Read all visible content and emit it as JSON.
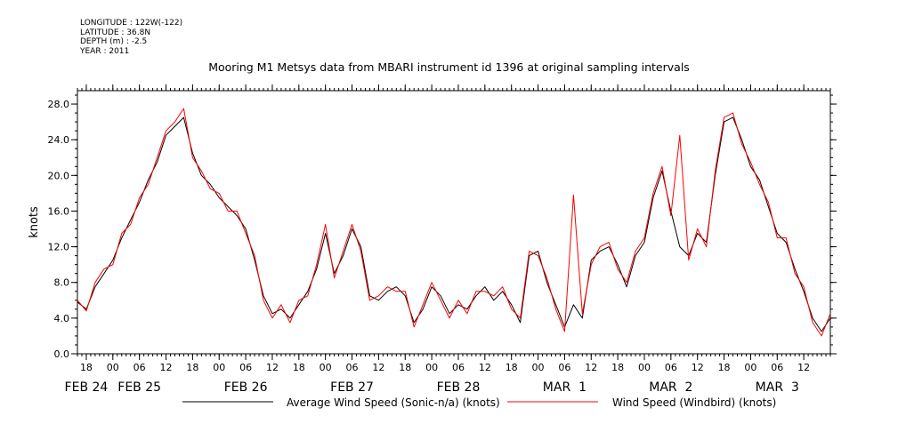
{
  "header": {
    "longitude": "LONGITUDE : 122W(-122)",
    "latitude": "LATITUDE : 36.8N",
    "depth": "DEPTH (m) : -2.5",
    "year": "YEAR : 2011"
  },
  "chart_data": {
    "type": "line",
    "title": "Mooring M1 Metsys data from MBARI instrument id 1396 at original sampling intervals",
    "ylabel": "knots",
    "xlabel": "",
    "ylim": [
      0,
      29.5
    ],
    "xlim": [
      "2011-02-24T16:00",
      "2011-03-03T18:00"
    ],
    "yticks": [
      "0.0",
      "4.0",
      "8.0",
      "12.0",
      "16.0",
      "20.0",
      "24.0",
      "28.0"
    ],
    "ytick_values": [
      0,
      4,
      8,
      12,
      16,
      20,
      24,
      28
    ],
    "hour_ticks": [
      {
        "t": "2011-02-24T18:00",
        "label": "18"
      },
      {
        "t": "2011-02-25T00:00",
        "label": "00"
      },
      {
        "t": "2011-02-25T06:00",
        "label": "06"
      },
      {
        "t": "2011-02-25T12:00",
        "label": "12"
      },
      {
        "t": "2011-02-25T18:00",
        "label": "18"
      },
      {
        "t": "2011-02-26T00:00",
        "label": "00"
      },
      {
        "t": "2011-02-26T06:00",
        "label": "06"
      },
      {
        "t": "2011-02-26T12:00",
        "label": "12"
      },
      {
        "t": "2011-02-26T18:00",
        "label": "18"
      },
      {
        "t": "2011-02-27T00:00",
        "label": "00"
      },
      {
        "t": "2011-02-27T06:00",
        "label": "06"
      },
      {
        "t": "2011-02-27T12:00",
        "label": "12"
      },
      {
        "t": "2011-02-27T18:00",
        "label": "18"
      },
      {
        "t": "2011-02-28T00:00",
        "label": "00"
      },
      {
        "t": "2011-02-28T06:00",
        "label": "06"
      },
      {
        "t": "2011-02-28T12:00",
        "label": "12"
      },
      {
        "t": "2011-02-28T18:00",
        "label": "18"
      },
      {
        "t": "2011-03-01T00:00",
        "label": "00"
      },
      {
        "t": "2011-03-01T06:00",
        "label": "06"
      },
      {
        "t": "2011-03-01T12:00",
        "label": "12"
      },
      {
        "t": "2011-03-01T18:00",
        "label": "18"
      },
      {
        "t": "2011-03-02T00:00",
        "label": "00"
      },
      {
        "t": "2011-03-02T06:00",
        "label": "06"
      },
      {
        "t": "2011-03-02T12:00",
        "label": "12"
      },
      {
        "t": "2011-03-02T18:00",
        "label": "18"
      },
      {
        "t": "2011-03-03T00:00",
        "label": "00"
      },
      {
        "t": "2011-03-03T06:00",
        "label": "06"
      },
      {
        "t": "2011-03-03T12:00",
        "label": "12"
      }
    ],
    "day_labels": [
      {
        "t": "2011-02-24T18:00",
        "label": "FEB 24"
      },
      {
        "t": "2011-02-25T06:00",
        "label": "FEB 25"
      },
      {
        "t": "2011-02-26T06:00",
        "label": "FEB 26"
      },
      {
        "t": "2011-02-27T06:00",
        "label": "FEB 27"
      },
      {
        "t": "2011-02-28T06:00",
        "label": "FEB 28"
      },
      {
        "t": "2011-03-01T06:00",
        "label": "MAR  1"
      },
      {
        "t": "2011-03-02T06:00",
        "label": "MAR  2"
      },
      {
        "t": "2011-03-03T06:00",
        "label": "MAR  3"
      }
    ],
    "series": [
      {
        "name": "Average Wind Speed (Sonic-n/a) (knots)",
        "color": "#000000",
        "points": [
          [
            "2011-02-24T16:00",
            5.8
          ],
          [
            "2011-02-24T18:00",
            5.0
          ],
          [
            "2011-02-24T20:00",
            7.5
          ],
          [
            "2011-02-24T22:00",
            9.0
          ],
          [
            "2011-02-25T00:00",
            10.5
          ],
          [
            "2011-02-25T02:00",
            13.0
          ],
          [
            "2011-02-25T04:00",
            15.0
          ],
          [
            "2011-02-25T06:00",
            17.0
          ],
          [
            "2011-02-25T08:00",
            19.5
          ],
          [
            "2011-02-25T10:00",
            21.5
          ],
          [
            "2011-02-25T12:00",
            24.5
          ],
          [
            "2011-02-25T14:00",
            25.5
          ],
          [
            "2011-02-25T16:00",
            26.5
          ],
          [
            "2011-02-25T18:00",
            22.5
          ],
          [
            "2011-02-25T20:00",
            20.0
          ],
          [
            "2011-02-25T22:00",
            19.0
          ],
          [
            "2011-02-26T00:00",
            17.5
          ],
          [
            "2011-02-26T02:00",
            16.5
          ],
          [
            "2011-02-26T04:00",
            15.5
          ],
          [
            "2011-02-26T06:00",
            14.0
          ],
          [
            "2011-02-26T08:00",
            10.5
          ],
          [
            "2011-02-26T10:00",
            6.5
          ],
          [
            "2011-02-26T12:00",
            4.5
          ],
          [
            "2011-02-26T14:00",
            5.0
          ],
          [
            "2011-02-26T16:00",
            4.0
          ],
          [
            "2011-02-26T18:00",
            5.5
          ],
          [
            "2011-02-26T20:00",
            7.0
          ],
          [
            "2011-02-26T22:00",
            9.5
          ],
          [
            "2011-02-27T00:00",
            13.5
          ],
          [
            "2011-02-27T02:00",
            9.0
          ],
          [
            "2011-02-27T04:00",
            11.0
          ],
          [
            "2011-02-27T06:00",
            14.0
          ],
          [
            "2011-02-27T08:00",
            12.0
          ],
          [
            "2011-02-27T10:00",
            6.5
          ],
          [
            "2011-02-27T12:00",
            6.0
          ],
          [
            "2011-02-27T14:00",
            7.0
          ],
          [
            "2011-02-27T16:00",
            7.5
          ],
          [
            "2011-02-27T18:00",
            6.5
          ],
          [
            "2011-02-27T20:00",
            3.5
          ],
          [
            "2011-02-27T22:00",
            5.0
          ],
          [
            "2011-02-28T00:00",
            7.5
          ],
          [
            "2011-02-28T02:00",
            6.5
          ],
          [
            "2011-02-28T04:00",
            4.5
          ],
          [
            "2011-02-28T06:00",
            5.5
          ],
          [
            "2011-02-28T08:00",
            5.0
          ],
          [
            "2011-02-28T10:00",
            6.5
          ],
          [
            "2011-02-28T12:00",
            7.5
          ],
          [
            "2011-02-28T14:00",
            6.0
          ],
          [
            "2011-02-28T16:00",
            7.0
          ],
          [
            "2011-02-28T18:00",
            5.5
          ],
          [
            "2011-02-28T20:00",
            3.5
          ],
          [
            "2011-02-28T22:00",
            11.0
          ],
          [
            "2011-03-01T00:00",
            11.5
          ],
          [
            "2011-03-01T02:00",
            8.0
          ],
          [
            "2011-03-01T04:00",
            5.5
          ],
          [
            "2011-03-01T06:00",
            3.0
          ],
          [
            "2011-03-01T08:00",
            5.5
          ],
          [
            "2011-03-01T10:00",
            4.0
          ],
          [
            "2011-03-01T12:00",
            10.5
          ],
          [
            "2011-03-01T14:00",
            11.5
          ],
          [
            "2011-03-01T16:00",
            12.0
          ],
          [
            "2011-03-01T18:00",
            10.0
          ],
          [
            "2011-03-01T20:00",
            7.5
          ],
          [
            "2011-03-01T22:00",
            11.0
          ],
          [
            "2011-03-02T00:00",
            12.5
          ],
          [
            "2011-03-02T02:00",
            17.5
          ],
          [
            "2011-03-02T04:00",
            20.5
          ],
          [
            "2011-03-02T06:00",
            16.0
          ],
          [
            "2011-03-02T08:00",
            12.0
          ],
          [
            "2011-03-02T10:00",
            11.0
          ],
          [
            "2011-03-02T12:00",
            13.5
          ],
          [
            "2011-03-02T14:00",
            12.5
          ],
          [
            "2011-03-02T16:00",
            20.0
          ],
          [
            "2011-03-02T18:00",
            26.0
          ],
          [
            "2011-03-02T20:00",
            26.5
          ],
          [
            "2011-03-02T22:00",
            24.0
          ],
          [
            "2011-03-03T00:00",
            21.0
          ],
          [
            "2011-03-03T02:00",
            19.5
          ],
          [
            "2011-03-03T04:00",
            16.5
          ],
          [
            "2011-03-03T06:00",
            13.5
          ],
          [
            "2011-03-03T08:00",
            12.5
          ],
          [
            "2011-03-03T10:00",
            9.5
          ],
          [
            "2011-03-03T12:00",
            7.0
          ],
          [
            "2011-03-03T14:00",
            4.0
          ],
          [
            "2011-03-03T16:00",
            2.5
          ],
          [
            "2011-03-03T18:00",
            4.0
          ]
        ]
      },
      {
        "name": "Wind Speed (Windbird) (knots)",
        "color": "#ff0000",
        "points": [
          [
            "2011-02-24T16:00",
            6.0
          ],
          [
            "2011-02-24T18:00",
            4.8
          ],
          [
            "2011-02-24T20:00",
            8.0
          ],
          [
            "2011-02-24T22:00",
            9.5
          ],
          [
            "2011-02-25T00:00",
            10.0
          ],
          [
            "2011-02-25T02:00",
            13.5
          ],
          [
            "2011-02-25T04:00",
            14.5
          ],
          [
            "2011-02-25T06:00",
            17.5
          ],
          [
            "2011-02-25T08:00",
            19.0
          ],
          [
            "2011-02-25T10:00",
            22.0
          ],
          [
            "2011-02-25T12:00",
            25.0
          ],
          [
            "2011-02-25T14:00",
            26.0
          ],
          [
            "2011-02-25T16:00",
            27.5
          ],
          [
            "2011-02-25T18:00",
            22.0
          ],
          [
            "2011-02-25T20:00",
            20.5
          ],
          [
            "2011-02-25T22:00",
            18.5
          ],
          [
            "2011-02-26T00:00",
            18.0
          ],
          [
            "2011-02-26T02:00",
            16.0
          ],
          [
            "2011-02-26T04:00",
            16.0
          ],
          [
            "2011-02-26T06:00",
            13.5
          ],
          [
            "2011-02-26T08:00",
            11.0
          ],
          [
            "2011-02-26T10:00",
            6.0
          ],
          [
            "2011-02-26T12:00",
            4.0
          ],
          [
            "2011-02-26T14:00",
            5.5
          ],
          [
            "2011-02-26T16:00",
            3.5
          ],
          [
            "2011-02-26T18:00",
            6.0
          ],
          [
            "2011-02-26T20:00",
            6.5
          ],
          [
            "2011-02-26T22:00",
            10.0
          ],
          [
            "2011-02-27T00:00",
            14.5
          ],
          [
            "2011-02-27T02:00",
            8.5
          ],
          [
            "2011-02-27T04:00",
            11.5
          ],
          [
            "2011-02-27T06:00",
            14.5
          ],
          [
            "2011-02-27T08:00",
            11.5
          ],
          [
            "2011-02-27T10:00",
            6.0
          ],
          [
            "2011-02-27T12:00",
            6.5
          ],
          [
            "2011-02-27T14:00",
            7.5
          ],
          [
            "2011-02-27T16:00",
            7.0
          ],
          [
            "2011-02-27T18:00",
            7.0
          ],
          [
            "2011-02-27T20:00",
            3.0
          ],
          [
            "2011-02-27T22:00",
            5.5
          ],
          [
            "2011-02-28T00:00",
            8.0
          ],
          [
            "2011-02-28T02:00",
            6.0
          ],
          [
            "2011-02-28T04:00",
            4.0
          ],
          [
            "2011-02-28T06:00",
            6.0
          ],
          [
            "2011-02-28T08:00",
            4.5
          ],
          [
            "2011-02-28T10:00",
            7.0
          ],
          [
            "2011-02-28T12:00",
            7.0
          ],
          [
            "2011-02-28T14:00",
            6.5
          ],
          [
            "2011-02-28T16:00",
            7.5
          ],
          [
            "2011-02-28T18:00",
            5.0
          ],
          [
            "2011-02-28T20:00",
            4.0
          ],
          [
            "2011-02-28T22:00",
            11.5
          ],
          [
            "2011-03-01T00:00",
            11.0
          ],
          [
            "2011-03-01T02:00",
            8.5
          ],
          [
            "2011-03-01T04:00",
            5.0
          ],
          [
            "2011-03-01T06:00",
            2.5
          ],
          [
            "2011-03-01T08:00",
            17.8
          ],
          [
            "2011-03-01T10:00",
            4.5
          ],
          [
            "2011-03-01T12:00",
            10.0
          ],
          [
            "2011-03-01T14:00",
            12.0
          ],
          [
            "2011-03-01T16:00",
            12.5
          ],
          [
            "2011-03-01T18:00",
            9.5
          ],
          [
            "2011-03-01T20:00",
            8.0
          ],
          [
            "2011-03-01T22:00",
            11.5
          ],
          [
            "2011-03-02T00:00",
            13.0
          ],
          [
            "2011-03-02T02:00",
            18.0
          ],
          [
            "2011-03-02T04:00",
            21.0
          ],
          [
            "2011-03-02T06:00",
            15.5
          ],
          [
            "2011-03-02T08:00",
            24.5
          ],
          [
            "2011-03-02T10:00",
            10.5
          ],
          [
            "2011-03-02T12:00",
            14.0
          ],
          [
            "2011-03-02T14:00",
            12.0
          ],
          [
            "2011-03-02T16:00",
            20.5
          ],
          [
            "2011-03-02T18:00",
            26.5
          ],
          [
            "2011-03-02T20:00",
            27.0
          ],
          [
            "2011-03-02T22:00",
            23.5
          ],
          [
            "2011-03-03T00:00",
            21.5
          ],
          [
            "2011-03-03T02:00",
            19.0
          ],
          [
            "2011-03-03T04:00",
            17.0
          ],
          [
            "2011-03-03T06:00",
            13.0
          ],
          [
            "2011-03-03T08:00",
            13.0
          ],
          [
            "2011-03-03T10:00",
            9.0
          ],
          [
            "2011-03-03T12:00",
            7.5
          ],
          [
            "2011-03-03T14:00",
            3.5
          ],
          [
            "2011-03-03T16:00",
            2.0
          ],
          [
            "2011-03-03T18:00",
            4.5
          ]
        ]
      }
    ],
    "grid": false,
    "legend": "bottom"
  }
}
